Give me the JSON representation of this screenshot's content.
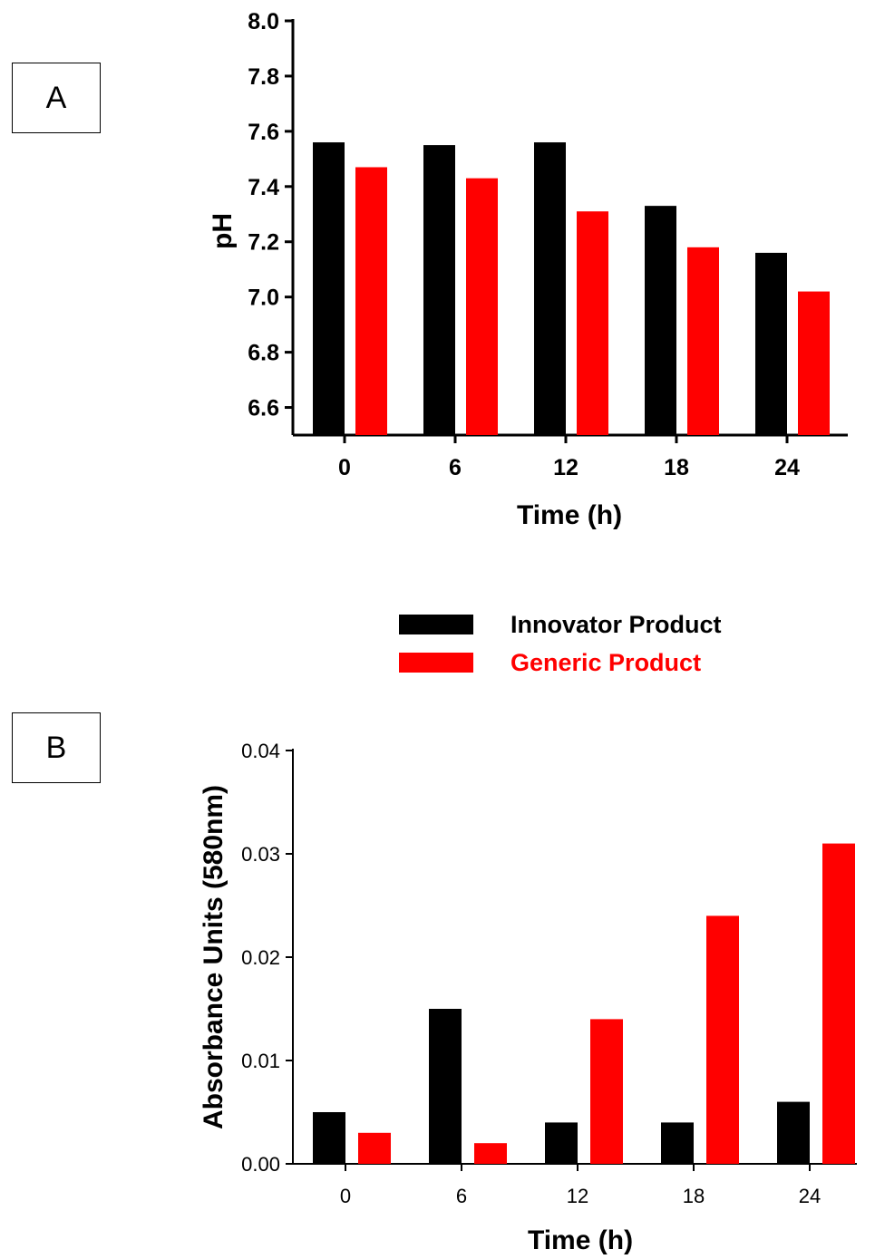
{
  "panels": {
    "a_label": "A",
    "b_label": "B"
  },
  "legend": {
    "items": [
      {
        "label": "Innovator Product",
        "color": "#000000"
      },
      {
        "label": "Generic Product",
        "color": "#ff0000"
      }
    ]
  },
  "chart_data": [
    {
      "type": "bar",
      "panel": "A",
      "categories": [
        "0",
        "6",
        "12",
        "18",
        "24"
      ],
      "series": [
        {
          "name": "Innovator Product",
          "color": "#000000",
          "values": [
            7.56,
            7.55,
            7.56,
            7.33,
            7.16
          ]
        },
        {
          "name": "Generic Product",
          "color": "#ff0000",
          "values": [
            7.47,
            7.43,
            7.31,
            7.18,
            7.02
          ]
        }
      ],
      "xlabel": "Time (h)",
      "ylabel": "pH",
      "ylim": [
        6.5,
        8.0
      ],
      "yticks": [
        "6.6",
        "6.8",
        "7.0",
        "7.2",
        "7.4",
        "7.6",
        "7.8",
        "8.0"
      ],
      "ytick_values": [
        6.6,
        6.8,
        7.0,
        7.2,
        7.4,
        7.6,
        7.8,
        8.0
      ],
      "grid": false
    },
    {
      "type": "bar",
      "panel": "B",
      "categories": [
        "0",
        "6",
        "12",
        "18",
        "24"
      ],
      "series": [
        {
          "name": "Innovator Product",
          "color": "#000000",
          "values": [
            0.005,
            0.015,
            0.004,
            0.004,
            0.006
          ]
        },
        {
          "name": "Generic Product",
          "color": "#ff0000",
          "values": [
            0.003,
            0.002,
            0.014,
            0.024,
            0.031
          ]
        }
      ],
      "xlabel": "Time (h)",
      "ylabel": "Absorbance Units (580nm)",
      "ylim": [
        0,
        0.04
      ],
      "yticks": [
        "0.00",
        "0.01",
        "0.02",
        "0.03",
        "0.04"
      ],
      "ytick_values": [
        0,
        0.01,
        0.02,
        0.03,
        0.04
      ],
      "grid": false
    }
  ]
}
